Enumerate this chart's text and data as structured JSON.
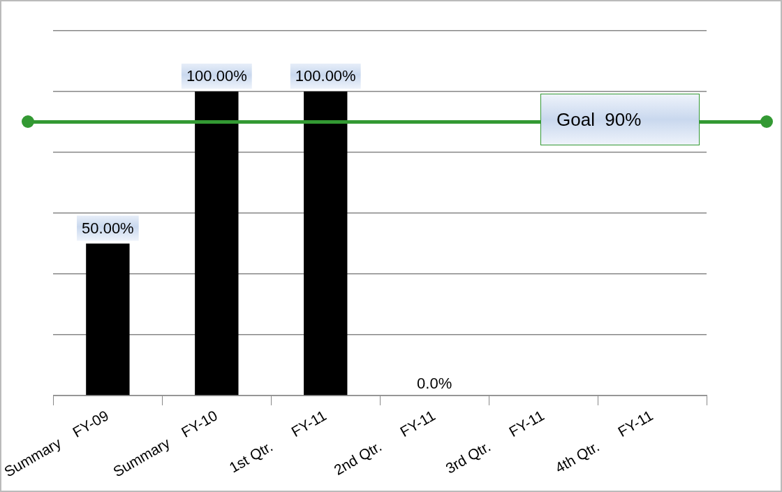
{
  "chart_data": {
    "type": "bar",
    "categories": [
      "Summary    FY-09",
      "Summary    FY-10",
      "1st Qtr.      FY-11",
      "2nd Qtr.      FY-11",
      "3rd Qtr.      FY-11",
      "4th Qtr.      FY-11"
    ],
    "values": [
      50,
      100,
      100,
      0,
      null,
      null
    ],
    "color": "#000000",
    "value_labels": [
      "50.00%",
      "100.00%",
      "100.00%",
      "0.0%",
      null,
      null
    ],
    "ylim": [
      0,
      120
    ],
    "yticks": [
      {
        "value": 0,
        "label": null
      },
      {
        "value": 20,
        "label": null
      },
      {
        "value": 40,
        "label": null
      },
      {
        "value": 60,
        "label": null
      },
      {
        "value": 80,
        "label": null
      },
      {
        "value": 100,
        "label": null
      },
      {
        "value": 120,
        "label": null
      }
    ],
    "tick_labels": "x",
    "grid": "y",
    "legend": false,
    "ref_lines": [
      {
        "axis": "y",
        "value": 90,
        "label": "Goal  90%",
        "color": "#339933"
      }
    ]
  }
}
